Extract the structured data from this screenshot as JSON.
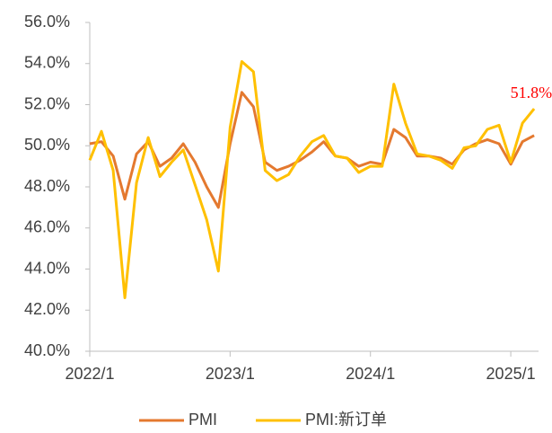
{
  "chart_data": {
    "type": "line",
    "categories": [
      "2022/1",
      null,
      null,
      null,
      null,
      null,
      null,
      null,
      null,
      null,
      null,
      null,
      "2023/1",
      null,
      null,
      null,
      null,
      null,
      null,
      null,
      null,
      null,
      null,
      null,
      "2024/1",
      null,
      null,
      null,
      null,
      null,
      null,
      null,
      null,
      null,
      null,
      null,
      "2025/1",
      null,
      null
    ],
    "series": [
      {
        "name": "PMI",
        "color": "#e4792f",
        "values": [
          50.1,
          50.2,
          49.5,
          47.4,
          49.6,
          50.2,
          49.0,
          49.4,
          50.1,
          49.2,
          48.0,
          47.0,
          50.1,
          52.6,
          51.9,
          49.2,
          48.8,
          49.0,
          49.3,
          49.7,
          50.2,
          49.5,
          49.4,
          49.0,
          49.2,
          49.1,
          50.8,
          50.4,
          49.5,
          49.5,
          49.4,
          49.1,
          49.8,
          50.1,
          50.3,
          50.1,
          49.1,
          50.2,
          50.5
        ]
      },
      {
        "name": "PMI:新订单",
        "color": "#ffc000",
        "values": [
          49.3,
          50.7,
          48.8,
          42.6,
          48.2,
          50.4,
          48.5,
          49.2,
          49.8,
          48.1,
          46.4,
          43.9,
          50.9,
          54.1,
          53.6,
          48.8,
          48.3,
          48.6,
          49.5,
          50.2,
          50.5,
          49.5,
          49.4,
          48.7,
          49.0,
          49.0,
          53.0,
          51.1,
          49.6,
          49.5,
          49.3,
          48.9,
          49.9,
          50.0,
          50.8,
          51.0,
          49.2,
          51.1,
          51.8
        ]
      }
    ],
    "annotation": "51.8%",
    "ylim": [
      40,
      56
    ],
    "yticks": [
      {
        "value": 40,
        "label": "40.0%"
      },
      {
        "value": 42,
        "label": "42.0%"
      },
      {
        "value": 44,
        "label": "44.0%"
      },
      {
        "value": 46,
        "label": "46.0%"
      },
      {
        "value": 48,
        "label": "48.0%"
      },
      {
        "value": 50,
        "label": "50.0%"
      },
      {
        "value": 52,
        "label": "52.0%"
      },
      {
        "value": 54,
        "label": "54.0%"
      },
      {
        "value": 56,
        "label": "56.0%"
      }
    ],
    "grid": false
  }
}
